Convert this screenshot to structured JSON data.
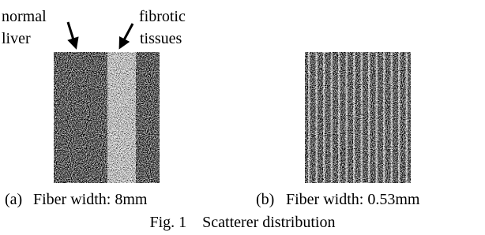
{
  "annotations": [
    {
      "lines": [
        "normal",
        "liver"
      ]
    },
    {
      "lines": [
        "fibrotic",
        "tissues"
      ]
    }
  ],
  "panels": [
    {
      "label": "(a)",
      "caption": "Fiber width: 8mm"
    },
    {
      "label": "(b)",
      "caption": "Fiber width: 0.53mm"
    }
  ],
  "figure_caption": "Fig. 1    Scatterer distribution"
}
